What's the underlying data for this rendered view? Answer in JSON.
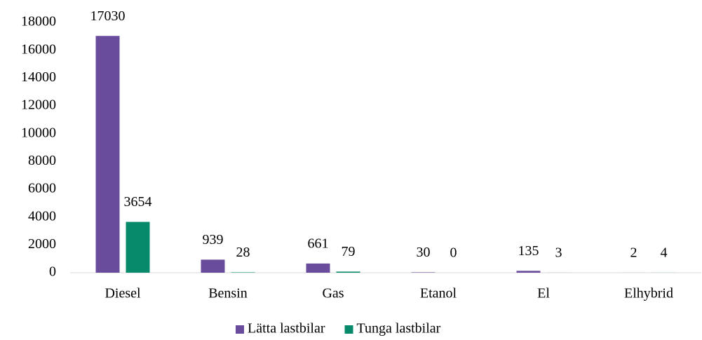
{
  "chart_data": {
    "type": "bar",
    "categories": [
      "Diesel",
      "Bensin",
      "Gas",
      "Etanol",
      "El",
      "Elhybrid"
    ],
    "series": [
      {
        "name": "Lätta lastbilar",
        "color": "#6a4c9c",
        "values": [
          17030,
          939,
          661,
          30,
          135,
          2
        ]
      },
      {
        "name": "Tunga lastbilar",
        "color": "#078a6b",
        "values": [
          3654,
          28,
          79,
          0,
          3,
          4
        ]
      }
    ],
    "ylim": [
      0,
      18000
    ],
    "yticks": [
      0,
      2000,
      4000,
      6000,
      8000,
      10000,
      12000,
      14000,
      16000,
      18000
    ],
    "grid": false,
    "legend": "bottom"
  }
}
